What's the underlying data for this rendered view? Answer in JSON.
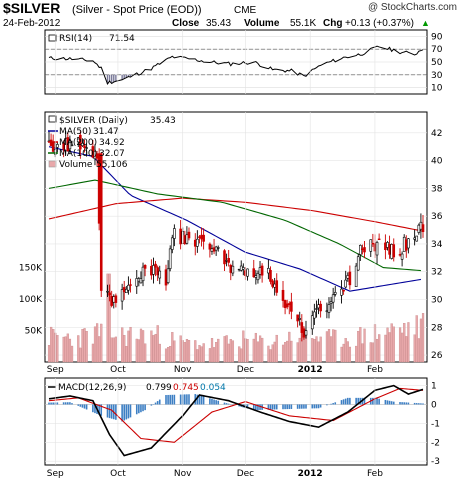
{
  "header": {
    "symbol": "$SILVER",
    "description": "(Silver - Spot Price (EOD))",
    "exchange": "CME",
    "watermark": "@ StockCharts.com",
    "date": "24-Feb-2012",
    "close_label": "Close",
    "close_value": "35.43",
    "volume_label": "Volume",
    "volume_value": "55.1K",
    "chg_label": "Chg",
    "chg_value": "+0.13 (+0.37%)",
    "chg_arrow": "▲"
  },
  "colors": {
    "up_candle": "#000000",
    "down_candle": "#cc0000",
    "ma50": "#000099",
    "ma200": "#cc0000",
    "ma100": "#006600",
    "volume": "#e8a8aa",
    "macd_line": "#000000",
    "signal_line": "#cc0000",
    "histogram": "#3d7fc4",
    "hist_label": "#0077aa",
    "rsi_fill_dark": "#7a7a9a"
  },
  "chart_data": [
    {
      "type": "line",
      "panel": "rsi",
      "legend": {
        "name": "RSI(14)",
        "value": "71.54"
      },
      "ylim": [
        0,
        100
      ],
      "yticks": [
        90,
        70,
        50,
        30,
        10
      ],
      "reference_lines": [
        70,
        30
      ],
      "grid": true,
      "x_start": "2011-08-29",
      "x_end": "2012-02-24",
      "series": [
        {
          "name": "RSI(14)",
          "x": [
            "2011-08-29",
            "2011-09-08",
            "2011-09-19",
            "2011-09-23",
            "2011-09-26",
            "2011-10-03",
            "2011-10-17",
            "2011-10-27",
            "2011-11-04",
            "2011-11-14",
            "2011-11-24",
            "2011-12-05",
            "2011-12-14",
            "2011-12-23",
            "2011-12-29",
            "2012-01-06",
            "2012-01-16",
            "2012-01-25",
            "2012-02-03",
            "2012-02-13",
            "2012-02-20",
            "2012-02-24"
          ],
          "values": [
            56,
            55,
            52,
            40,
            18,
            22,
            40,
            58,
            55,
            50,
            47,
            50,
            38,
            36,
            28,
            45,
            56,
            62,
            74,
            66,
            62,
            71.54
          ]
        }
      ]
    },
    {
      "type": "candlestick",
      "panel": "price",
      "legend_entries": [
        {
          "name": "$SILVER (Daily)",
          "value": "35.43"
        },
        {
          "name": "MA(50)",
          "value": "31.47"
        },
        {
          "name": "MA(200)",
          "value": "34.92"
        },
        {
          "name": "MA(100)",
          "value": "32.07"
        },
        {
          "name": "Volume",
          "value": "55,106"
        }
      ],
      "ylim": [
        25.5,
        43.5
      ],
      "yticks": [
        42,
        40,
        38,
        36,
        34,
        32,
        30,
        28,
        26
      ],
      "volume_axis_ticks": [
        "150K",
        "100K",
        "50K"
      ],
      "grid": true,
      "x_start": "2011-08-29",
      "x_end": "2012-02-24",
      "series": [
        {
          "name": "$SILVER (Daily)",
          "x": [
            "2011-08-29",
            "2011-09-12",
            "2011-09-21",
            "2011-09-23",
            "2011-09-26",
            "2011-10-03",
            "2011-10-14",
            "2011-10-24",
            "2011-10-28",
            "2011-11-07",
            "2011-11-16",
            "2011-11-25",
            "2011-12-05",
            "2011-12-12",
            "2011-12-20",
            "2011-12-29",
            "2012-01-06",
            "2012-01-17",
            "2012-01-25",
            "2012-02-01",
            "2012-02-10",
            "2012-02-17",
            "2012-02-24"
          ],
          "values": [
            41,
            41.2,
            40.5,
            30.2,
            30.0,
            30.5,
            32.3,
            31.5,
            34.8,
            34.0,
            33.5,
            32.0,
            32.0,
            31.8,
            29.7,
            27.8,
            29.3,
            30.5,
            33.3,
            33.9,
            33.6,
            34.0,
            35.43
          ]
        },
        {
          "name": "MA(50)",
          "x": [
            "2011-08-29",
            "2011-09-19",
            "2011-10-07",
            "2011-11-03",
            "2011-12-01",
            "2011-12-27",
            "2012-01-20",
            "2012-02-24"
          ],
          "values": [
            41,
            40.3,
            37.5,
            35.7,
            33.4,
            32.2,
            30.6,
            31.47
          ]
        },
        {
          "name": "MA(200)",
          "x": [
            "2011-08-29",
            "2011-09-30",
            "2011-11-01",
            "2011-12-01",
            "2012-01-02",
            "2012-02-01",
            "2012-02-24"
          ],
          "values": [
            35.8,
            36.9,
            37.3,
            37.0,
            36.4,
            35.6,
            34.92
          ]
        },
        {
          "name": "MA(100)",
          "x": [
            "2011-08-29",
            "2011-09-20",
            "2011-10-20",
            "2011-11-20",
            "2011-12-20",
            "2012-01-15",
            "2012-02-05",
            "2012-02-24"
          ],
          "values": [
            38.0,
            38.6,
            37.6,
            37.0,
            35.7,
            34.0,
            32.3,
            32.07
          ]
        }
      ],
      "volume": {
        "name": "Volume",
        "x": [
          "2011-08-29",
          "2011-09-12",
          "2011-09-23",
          "2011-10-03",
          "2011-10-17",
          "2011-11-01",
          "2011-11-15",
          "2011-12-01",
          "2011-12-12",
          "2011-12-29",
          "2012-01-10",
          "2012-01-25",
          "2012-02-08",
          "2012-02-24"
        ],
        "values": [
          40000,
          38000,
          48000,
          42000,
          44000,
          30000,
          28000,
          35000,
          30000,
          45000,
          36000,
          40000,
          50000,
          55106
        ]
      }
    },
    {
      "type": "line",
      "panel": "macd",
      "legend": [
        {
          "name": "MACD(12,26,9)",
          "value": "0.799"
        },
        {
          "name": "signal",
          "value": "0.745"
        },
        {
          "name": "histogram",
          "value": "0.054"
        }
      ],
      "ylim": [
        -3.2,
        1.4
      ],
      "yticks": [
        1,
        0,
        -1,
        -2,
        -3
      ],
      "x_start": "2011-08-29",
      "x_end": "2012-02-24",
      "series": [
        {
          "name": "MACD(12,26,9)",
          "x": [
            "2011-08-29",
            "2011-09-08",
            "2011-09-19",
            "2011-09-27",
            "2011-10-04",
            "2011-10-17",
            "2011-11-01",
            "2011-11-09",
            "2011-11-23",
            "2011-12-08",
            "2011-12-22",
            "2012-01-05",
            "2012-01-19",
            "2012-02-01",
            "2012-02-10",
            "2012-02-17",
            "2012-02-24"
          ],
          "values": [
            0.3,
            0.45,
            0.2,
            -1.6,
            -2.7,
            -2.3,
            -0.6,
            0.5,
            0.2,
            -0.4,
            -0.9,
            -1.2,
            -0.4,
            0.75,
            1.0,
            0.55,
            0.799
          ]
        },
        {
          "name": "signal",
          "x": [
            "2011-08-29",
            "2011-09-12",
            "2011-09-28",
            "2011-10-12",
            "2011-10-28",
            "2011-11-15",
            "2011-12-01",
            "2011-12-22",
            "2012-01-12",
            "2012-02-01",
            "2012-02-13",
            "2012-02-24"
          ],
          "values": [
            0.2,
            0.35,
            -0.3,
            -1.8,
            -2.0,
            -0.4,
            0.15,
            -0.6,
            -0.85,
            0.3,
            0.85,
            0.745
          ]
        },
        {
          "name": "histogram",
          "x": [
            "2011-08-29",
            "2011-09-08",
            "2011-09-23",
            "2011-10-03",
            "2011-10-14",
            "2011-10-24",
            "2011-11-07",
            "2011-11-21",
            "2011-12-05",
            "2011-12-19",
            "2012-01-05",
            "2012-01-19",
            "2012-02-01",
            "2012-02-10",
            "2012-02-24"
          ],
          "values": [
            0.1,
            0.12,
            -0.6,
            -0.9,
            -0.3,
            0.5,
            0.55,
            0.1,
            -0.3,
            -0.25,
            -0.2,
            0.35,
            0.35,
            0.15,
            0.054
          ]
        }
      ]
    }
  ],
  "x_axis": {
    "labels": [
      {
        "text": "Sep",
        "date": "2011-09-01"
      },
      {
        "text": "Oct",
        "date": "2011-10-01"
      },
      {
        "text": "Nov",
        "date": "2011-11-01"
      },
      {
        "text": "Dec",
        "date": "2011-12-01"
      },
      {
        "text": "2012",
        "date": "2012-01-01"
      },
      {
        "text": "Feb",
        "date": "2012-02-01"
      }
    ]
  }
}
